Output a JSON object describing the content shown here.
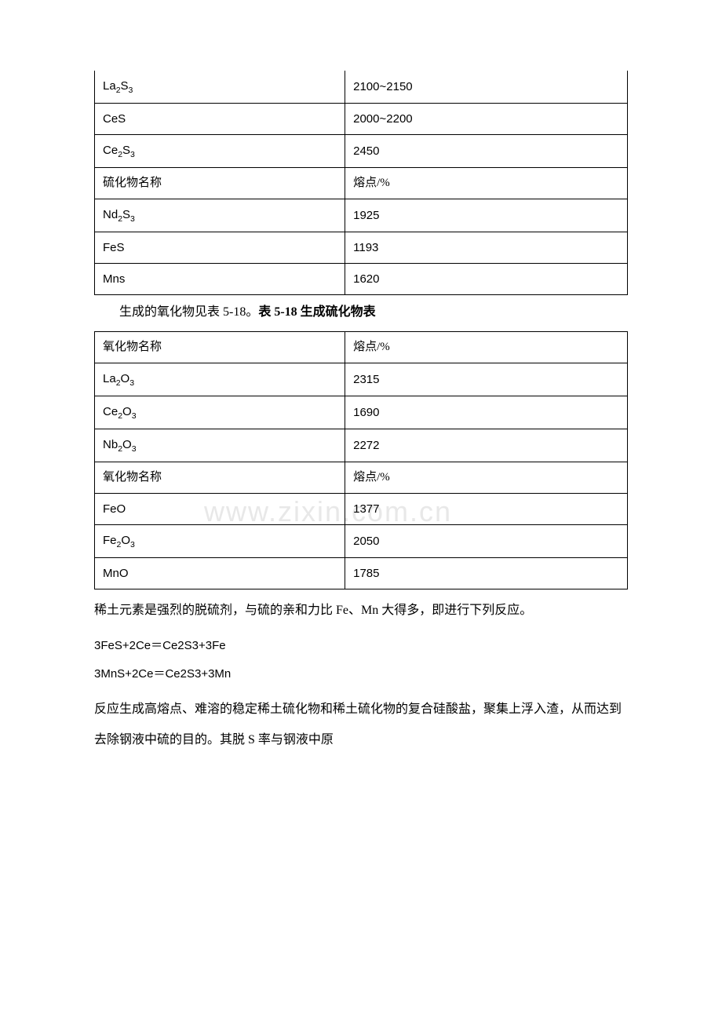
{
  "table1": {
    "rows": [
      {
        "name_html": "La<sub>2</sub>S<sub>3</sub>",
        "value": "2100~2150",
        "is_header": false,
        "top_row": true
      },
      {
        "name_html": "CeS",
        "value": "2000~2200",
        "is_header": false
      },
      {
        "name_html": "Ce<sub>2</sub>S<sub>3</sub>",
        "value": "2450",
        "is_header": false
      },
      {
        "name_html": "硫化物名称",
        "value": "熔点/%",
        "is_header": true
      },
      {
        "name_html": "Nd<sub>2</sub>S<sub>3</sub>",
        "value": "1925",
        "is_header": false
      },
      {
        "name_html": "FeS",
        "value": "1193",
        "is_header": false
      },
      {
        "name_html": "Mns",
        "value": "1620",
        "is_header": false
      }
    ]
  },
  "caption1": {
    "prefix": "生成的氧化物见表 5-18。",
    "bold": "表 5-18 生成硫化物表"
  },
  "table2": {
    "rows": [
      {
        "name_html": "氧化物名称",
        "value": "熔点/%",
        "is_header": true
      },
      {
        "name_html": "La<sub>2</sub>O<sub>3</sub>",
        "value": "2315",
        "is_header": false
      },
      {
        "name_html": "Ce<sub>2</sub>O<sub>3</sub>",
        "value": "1690",
        "is_header": false
      },
      {
        "name_html": "Nb<sub>2</sub>O<sub>3</sub>",
        "value": "2272",
        "is_header": false
      },
      {
        "name_html": "氧化物名称",
        "value": "熔点/%",
        "is_header": true
      },
      {
        "name_html": "FeO",
        "value": "1377",
        "is_header": false
      },
      {
        "name_html": "Fe<sub>2</sub>O<sub>3</sub>",
        "value": "2050",
        "is_header": false
      },
      {
        "name_html": "MnO",
        "value": "1785",
        "is_header": false
      }
    ]
  },
  "body_paragraphs": [
    "稀土元素是强烈的脱硫剂，与硫的亲和力比 Fe、Mn 大得多，即进行下列反应。"
  ],
  "equations": [
    "3FeS+2Ce＝Ce2S3+3Fe",
    "3MnS+2Ce＝Ce2S3+3Mn"
  ],
  "body_paragraphs2": [
    "反应生成高熔点、难溶的稳定稀土硫化物和稀土硫化物的复合硅酸盐，聚集上浮入渣，从而达到去除钢液中硫的目的。其脱 S 率与钢液中原"
  ],
  "watermark": "www.zixin.com.cn"
}
